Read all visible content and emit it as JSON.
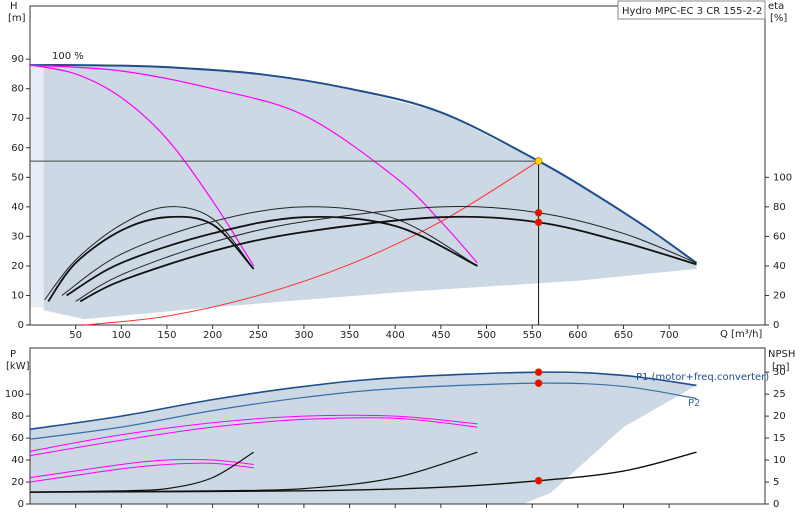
{
  "chart_data": [
    {
      "type": "line",
      "title": "Hydro MPC-EC 3 CR 155-2-2",
      "ylabel": "H",
      "yunit": "[m]",
      "y2label": "eta",
      "y2unit": "[%]",
      "xlabel": "Q [m³/h]",
      "annotations": [
        "100 %"
      ],
      "xlim": [
        0,
        805
      ],
      "xticks": [
        50,
        100,
        150,
        200,
        250,
        300,
        350,
        400,
        450,
        500,
        550,
        600,
        650,
        700
      ],
      "ylim": [
        0,
        108
      ],
      "yticks": [
        0,
        10,
        20,
        30,
        40,
        50,
        60,
        70,
        80,
        90
      ],
      "y2lim": [
        0,
        216
      ],
      "y2ticks": [
        0,
        20,
        40,
        60,
        80,
        100
      ],
      "areas": [
        {
          "color": "#e6eef5",
          "x": [
            0,
            15,
            15,
            0
          ],
          "values": [
            88,
            88,
            6,
            6
          ]
        },
        {
          "color": "#ccd8e4",
          "x": [
            15,
            50,
            100,
            150,
            250,
            350,
            450,
            557,
            620,
            730,
            730,
            600,
            400,
            200,
            60,
            15
          ],
          "values": [
            88,
            88,
            87.8,
            87.3,
            85,
            80,
            72,
            55.5,
            44,
            21,
            19,
            15,
            11,
            6,
            2,
            5
          ]
        }
      ],
      "series": [
        {
          "color": "#1f4e8c",
          "width": 2,
          "x": [
            0,
            50,
            100,
            150,
            250,
            350,
            450,
            557,
            620,
            680,
            730
          ],
          "values": [
            88,
            88,
            87.8,
            87.3,
            85,
            80,
            72,
            55.5,
            44,
            32,
            21
          ]
        },
        {
          "color": "#ff00ff",
          "width": 1.2,
          "x": [
            0,
            50,
            100,
            150,
            200,
            245
          ],
          "values": [
            88,
            85,
            77,
            63,
            42,
            20
          ]
        },
        {
          "color": "#ff00ff",
          "width": 1.2,
          "x": [
            0,
            100,
            200,
            300,
            400,
            450,
            490
          ],
          "values": [
            88,
            86,
            80,
            71,
            50,
            35,
            21
          ]
        },
        {
          "color": "#ff3030",
          "width": 1,
          "x": [
            60,
            150,
            250,
            350,
            450,
            557
          ],
          "values": [
            0,
            3,
            10,
            20.5,
            35,
            55.5
          ]
        },
        {
          "color": "#222222",
          "width": 1,
          "axis": "y2",
          "x": [
            16,
            50,
            100,
            150,
            200,
            245
          ],
          "values": [
            17,
            44,
            68,
            80,
            72,
            38
          ]
        },
        {
          "color": "#111111",
          "width": 1.8,
          "axis": "y2",
          "x": [
            20,
            50,
            100,
            150,
            200,
            245
          ],
          "values": [
            16,
            42,
            64,
            73,
            68,
            38
          ]
        },
        {
          "color": "#222222",
          "width": 1,
          "axis": "y2",
          "x": [
            35,
            100,
            200,
            300,
            400,
            490
          ],
          "values": [
            20,
            48,
            70,
            80,
            72,
            40
          ]
        },
        {
          "color": "#111111",
          "width": 1.8,
          "axis": "y2",
          "x": [
            40,
            100,
            200,
            300,
            400,
            490
          ],
          "values": [
            20,
            42,
            62,
            73,
            67,
            40
          ]
        },
        {
          "color": "#222222",
          "width": 1,
          "axis": "y2",
          "x": [
            50,
            100,
            200,
            300,
            450,
            557,
            650,
            730
          ],
          "values": [
            16,
            34,
            56,
            70,
            80,
            76,
            62,
            42
          ]
        },
        {
          "color": "#111111",
          "width": 1.8,
          "axis": "y2",
          "x": [
            55,
            100,
            200,
            300,
            450,
            557,
            650,
            730
          ],
          "values": [
            16,
            30,
            50,
            63,
            73,
            69.5,
            56,
            41
          ]
        }
      ],
      "crosshair": {
        "x": 557,
        "value": 55.5
      },
      "points": [
        {
          "x": 557,
          "value": 55.5,
          "color": "#ffd700"
        },
        {
          "x": 557,
          "value": 76,
          "axis": "y2",
          "color": "#ff0000"
        },
        {
          "x": 557,
          "value": 69.5,
          "axis": "y2",
          "color": "#ff0000"
        }
      ]
    },
    {
      "type": "line",
      "ylabel": "P",
      "yunit": "[kW]",
      "y2label": "NPSH",
      "y2unit": "[m]",
      "xlim": [
        0,
        805
      ],
      "xticks": [
        50,
        100,
        150,
        200,
        250,
        300,
        350,
        400,
        450,
        500,
        550,
        600,
        650,
        700
      ],
      "ylim": [
        0,
        142
      ],
      "yticks": [
        0,
        20,
        40,
        60,
        80,
        100
      ],
      "y2lim": [
        0,
        35.5
      ],
      "y2ticks": [
        0,
        5,
        10,
        15,
        20,
        25,
        30
      ],
      "areas": [
        {
          "color": "#ccd8e4",
          "x": [
            0,
            100,
            200,
            300,
            400,
            557,
            650,
            730,
            650,
            570,
            540,
            0
          ],
          "values": [
            68,
            80,
            95,
            107,
            115,
            120,
            117,
            108,
            70,
            10,
            0,
            0
          ]
        }
      ],
      "series": [
        {
          "name": "P1 (motor+freq.converter)",
          "color": "#1f4e8c",
          "width": 1.6,
          "x": [
            0,
            100,
            200,
            300,
            400,
            557,
            650,
            730
          ],
          "values": [
            68,
            80,
            95,
            107,
            115,
            120,
            117,
            108
          ]
        },
        {
          "name": "P2",
          "color": "#3a6ea5",
          "width": 1.2,
          "x": [
            0,
            100,
            200,
            300,
            400,
            557,
            650,
            730
          ],
          "values": [
            59,
            70,
            85,
            97,
            105,
            110,
            107,
            96
          ]
        },
        {
          "color": "#ff00ff",
          "width": 1,
          "x": [
            0,
            100,
            150,
            200,
            245
          ],
          "values": [
            20,
            32,
            36,
            37,
            33
          ]
        },
        {
          "color": "#ff00ff",
          "width": 1,
          "x": [
            0,
            100,
            150,
            200,
            245
          ],
          "values": [
            24,
            36,
            40,
            40,
            36
          ]
        },
        {
          "color": "#ff00ff",
          "width": 1,
          "x": [
            0,
            100,
            200,
            300,
            400,
            490
          ],
          "values": [
            44,
            58,
            70,
            77,
            78,
            70
          ]
        },
        {
          "color": "#ff00ff",
          "width": 1,
          "x": [
            0,
            100,
            200,
            300,
            400,
            490
          ],
          "values": [
            48,
            63,
            74,
            80,
            80,
            73
          ]
        },
        {
          "color": "#111111",
          "width": 1.2,
          "axis": "y2",
          "x": [
            0,
            100,
            150,
            200,
            245
          ],
          "values": [
            2.7,
            3,
            3.5,
            6,
            11.8
          ]
        },
        {
          "color": "#111111",
          "width": 1.2,
          "axis": "y2",
          "x": [
            0,
            200,
            300,
            400,
            490
          ],
          "values": [
            2.7,
            3,
            3.5,
            6,
            11.8
          ]
        },
        {
          "color": "#111111",
          "width": 1.4,
          "axis": "y2",
          "x": [
            0,
            300,
            450,
            557,
            650,
            730
          ],
          "values": [
            2.7,
            3,
            3.8,
            5.3,
            7.5,
            11.8
          ]
        }
      ],
      "points": [
        {
          "x": 557,
          "value": 120,
          "color": "#ff0000"
        },
        {
          "x": 557,
          "value": 110,
          "color": "#ff0000"
        },
        {
          "x": 557,
          "value": 5.3,
          "axis": "y2",
          "color": "#ff0000"
        }
      ]
    }
  ]
}
